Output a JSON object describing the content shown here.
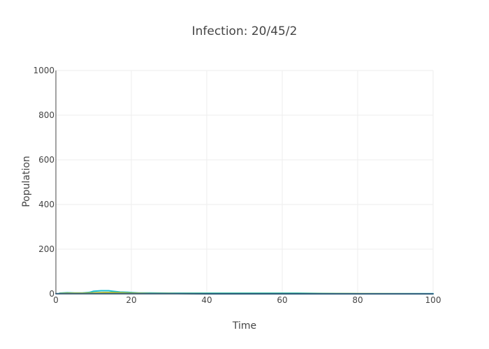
{
  "chart_data": {
    "type": "line",
    "title": "Infection: 20/45/2",
    "xlabel": "Time",
    "ylabel": "Population",
    "xlim": [
      0,
      100
    ],
    "ylim": [
      0,
      1000
    ],
    "x_ticks": [
      0,
      20,
      40,
      60,
      80,
      100
    ],
    "y_ticks": [
      0,
      200,
      400,
      600,
      800,
      1000
    ],
    "grid": true,
    "series": [
      {
        "color": "#17becf",
        "x": [
          1,
          3,
          5,
          7,
          9,
          10,
          12,
          14,
          15,
          17,
          19,
          20,
          22,
          25,
          30,
          40,
          50,
          60,
          64,
          70,
          80,
          90,
          100
        ],
        "values": [
          3,
          5,
          4,
          4,
          7,
          12,
          14,
          14,
          12,
          8,
          7,
          6,
          4,
          4,
          3,
          3,
          3,
          3,
          3,
          2,
          1,
          1,
          1
        ]
      },
      {
        "color": "#bcbd22",
        "x": [
          1,
          3,
          5,
          7,
          9,
          11,
          13,
          15,
          17,
          19,
          21,
          25,
          30,
          40,
          60,
          80,
          100
        ],
        "values": [
          2,
          3,
          3,
          3,
          4,
          5,
          6,
          6,
          5,
          4,
          3,
          2,
          2,
          1,
          1,
          1,
          0
        ]
      },
      {
        "color": "#1f77b4",
        "x": [
          0,
          10,
          20,
          30,
          40,
          60,
          80,
          100
        ],
        "values": [
          1,
          1,
          1,
          1,
          0,
          0,
          0,
          0
        ]
      }
    ]
  }
}
